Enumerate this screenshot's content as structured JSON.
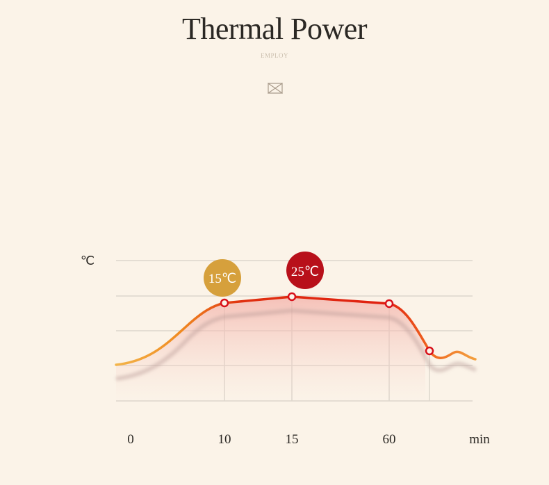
{
  "header": {
    "title": "Thermal Power",
    "subtitle": "EMPLOY",
    "ornament_icon": "bow-tie-icon"
  },
  "chart_data": {
    "type": "line",
    "ylabel": "℃",
    "xlabel": "min",
    "x_ticks": [
      "0",
      "10",
      "15",
      "60"
    ],
    "grid": true,
    "colors": {
      "line_start": "#f0a030",
      "line_main": "#e02010",
      "badge_15": "#d6a03c",
      "badge_25": "#b8101a"
    },
    "markers": [
      {
        "x": "10",
        "label": "15℃"
      },
      {
        "x": "15",
        "label": "25℃"
      },
      {
        "x": "60",
        "label": ""
      }
    ]
  }
}
